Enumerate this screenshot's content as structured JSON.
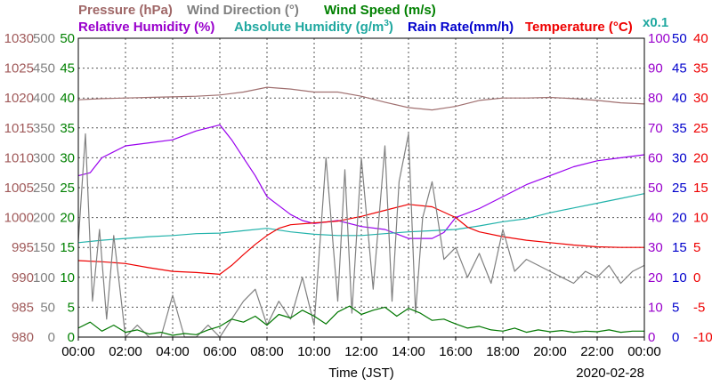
{
  "chart_data": {
    "type": "line",
    "date_label": "2020-02-28",
    "xlabel": "Time (JST)",
    "x_ticks": [
      "00:00",
      "02:00",
      "04:00",
      "06:00",
      "08:00",
      "10:00",
      "12:00",
      "14:00",
      "16:00",
      "18:00",
      "20:00",
      "22:00",
      "00:00"
    ],
    "grid": true,
    "titles": {
      "pressure": "Pressure (hPa)",
      "wind_direction": "Wind Direction (°)",
      "wind_speed": "Wind Speed (m/s)",
      "humidity": "Relative Humidity (%)",
      "abs_humidity": "Absolute Humidity (g/m",
      "abs_humidity_sup": "3",
      "abs_humidity_close": ")",
      "rain": "Rain Rate(mm/h)",
      "temperature": "Temperature (°C)",
      "rain_scale": "x0.1"
    },
    "axes": {
      "pressure": {
        "ylim": [
          980,
          1030
        ],
        "ticks": [
          980,
          985,
          990,
          995,
          1000,
          1005,
          1010,
          1015,
          1020,
          1025,
          1030
        ],
        "color": "#a05a5a"
      },
      "wind_direction": {
        "ylim": [
          0,
          500
        ],
        "ticks": [
          0,
          50,
          100,
          150,
          200,
          250,
          300,
          350,
          400,
          450,
          500
        ],
        "color": "#808080"
      },
      "wind_speed": {
        "ylim": [
          0,
          50
        ],
        "ticks": [
          0,
          5,
          10,
          15,
          20,
          25,
          30,
          35,
          40,
          45,
          50
        ],
        "color": "#008000"
      },
      "humidity": {
        "ylim": [
          0,
          100
        ],
        "ticks": [
          0,
          10,
          20,
          30,
          40,
          50,
          60,
          70,
          80,
          90,
          100
        ],
        "color": "#9900cc"
      },
      "rain": {
        "ylim": [
          0,
          50
        ],
        "ticks": [
          0,
          5,
          10,
          15,
          20,
          25,
          30,
          35,
          40,
          45,
          50
        ],
        "color": "#0000cc"
      },
      "temperature": {
        "ylim": [
          -10,
          40
        ],
        "ticks": [
          -10,
          -5,
          0,
          5,
          10,
          15,
          20,
          25,
          30,
          35,
          40
        ],
        "color": "#ee0000"
      }
    },
    "series": [
      {
        "name": "Pressure (hPa)",
        "axis": "pressure",
        "color": "#a07070",
        "x": [
          0,
          1,
          2,
          3,
          4,
          5,
          6,
          7,
          8,
          9,
          10,
          11,
          12,
          13,
          14,
          15,
          16,
          17,
          18,
          19,
          20,
          21,
          22,
          23,
          24
        ],
        "y": [
          1019.7,
          1019.9,
          1020.0,
          1020.1,
          1020.2,
          1020.3,
          1020.5,
          1021.0,
          1021.8,
          1021.5,
          1021.0,
          1021.0,
          1020.3,
          1019.3,
          1018.4,
          1018.0,
          1018.6,
          1019.6,
          1020.0,
          1020.0,
          1020.1,
          1019.9,
          1019.6,
          1019.2,
          1019.0
        ]
      },
      {
        "name": "Relative Humidity (%)",
        "axis": "humidity",
        "color": "#9900ee",
        "x": [
          0,
          0.5,
          1,
          2,
          3,
          4,
          5,
          6,
          6.5,
          7,
          7.5,
          8,
          8.5,
          9,
          9.5,
          10,
          11,
          12,
          13,
          14,
          15,
          15.5,
          16,
          17,
          18,
          19,
          20,
          21,
          22,
          23,
          24
        ],
        "y": [
          54,
          55,
          60,
          64,
          65,
          66,
          69,
          71,
          66,
          60,
          54,
          47,
          44,
          41,
          39,
          38,
          39,
          37,
          36,
          33,
          33,
          35,
          40,
          43,
          47,
          51,
          54,
          57,
          59,
          60,
          61
        ]
      },
      {
        "name": "Absolute Humidity (g/m3)",
        "axis": "wind_speed",
        "color": "#20b2aa",
        "x": [
          0,
          1,
          2,
          3,
          4,
          5,
          6,
          7,
          8,
          9,
          10,
          11,
          12,
          13,
          14,
          15,
          16,
          17,
          18,
          19,
          20,
          21,
          22,
          23,
          24
        ],
        "y": [
          15.8,
          16.2,
          16.5,
          16.8,
          17.0,
          17.3,
          17.4,
          17.8,
          18.2,
          17.6,
          17.2,
          17.0,
          17.0,
          17.3,
          17.6,
          17.8,
          18.0,
          18.6,
          19.3,
          19.8,
          20.8,
          21.6,
          22.4,
          23.2,
          24.0
        ]
      },
      {
        "name": "Temperature (°C)",
        "axis": "temperature",
        "color": "#ee0000",
        "x": [
          0,
          1,
          2,
          3,
          4,
          5,
          6,
          6.5,
          7,
          7.5,
          8,
          8.5,
          9,
          10,
          11,
          12,
          13,
          14,
          15,
          16,
          16.5,
          17,
          18,
          19,
          20,
          21,
          22,
          23,
          24
        ],
        "y": [
          2.8,
          2.6,
          2.3,
          1.6,
          1.0,
          0.8,
          0.5,
          2.0,
          3.8,
          5.5,
          7.0,
          8.2,
          8.8,
          9.1,
          9.4,
          10.2,
          11.2,
          12.2,
          11.8,
          10.0,
          8.4,
          7.6,
          6.8,
          6.2,
          5.8,
          5.4,
          5.1,
          5.0,
          5.0
        ]
      },
      {
        "name": "Wind Direction (°)",
        "axis": "wind_direction",
        "color": "#808080",
        "x": [
          0,
          0.3,
          0.6,
          0.9,
          1.2,
          1.5,
          2,
          2.5,
          3,
          3.5,
          4,
          4.5,
          5,
          5.5,
          6,
          6.5,
          7,
          7.5,
          8,
          8.5,
          9,
          9.5,
          10,
          10.5,
          11,
          11.3,
          11.6,
          12,
          12.5,
          13,
          13.3,
          13.6,
          14,
          14.3,
          14.6,
          15,
          15.5,
          16,
          16.5,
          17,
          17.5,
          18,
          18.5,
          19,
          19.5,
          20,
          20.5,
          21,
          21.5,
          22,
          22.5,
          23,
          23.5,
          24
        ],
        "y": [
          160,
          340,
          60,
          180,
          30,
          170,
          0,
          20,
          0,
          0,
          70,
          0,
          0,
          20,
          0,
          30,
          60,
          80,
          20,
          60,
          30,
          100,
          20,
          300,
          60,
          280,
          40,
          300,
          80,
          320,
          60,
          260,
          340,
          40,
          200,
          260,
          130,
          150,
          100,
          140,
          90,
          180,
          110,
          130,
          120,
          110,
          100,
          90,
          110,
          100,
          120,
          90,
          110,
          120
        ]
      },
      {
        "name": "Wind Speed (m/s)",
        "axis": "wind_speed",
        "color": "#007700",
        "x": [
          0,
          0.5,
          1,
          1.5,
          2,
          2.5,
          3,
          3.5,
          4,
          4.5,
          5,
          5.5,
          6,
          6.5,
          7,
          7.5,
          8,
          8.5,
          9,
          9.5,
          10,
          10.5,
          11,
          11.5,
          12,
          12.5,
          13,
          13.5,
          14,
          14.5,
          15,
          15.5,
          16,
          16.5,
          17,
          17.5,
          18,
          18.5,
          19,
          19.5,
          20,
          20.5,
          21,
          21.5,
          22,
          22.5,
          23,
          23.5,
          24
        ],
        "y": [
          1.5,
          2.5,
          1.0,
          2.0,
          0.8,
          1.2,
          0.5,
          0.8,
          0.3,
          0.6,
          0.4,
          1.2,
          1.8,
          3.0,
          2.5,
          3.5,
          2.0,
          3.8,
          3.2,
          4.5,
          3.5,
          2.2,
          4.2,
          5.2,
          3.8,
          4.5,
          5.0,
          3.5,
          4.8,
          4.0,
          2.8,
          3.0,
          2.2,
          1.5,
          1.8,
          1.2,
          1.0,
          1.5,
          0.8,
          1.2,
          0.9,
          1.1,
          0.8,
          1.0,
          0.9,
          1.2,
          0.8,
          1.0,
          1.0
        ]
      }
    ]
  }
}
